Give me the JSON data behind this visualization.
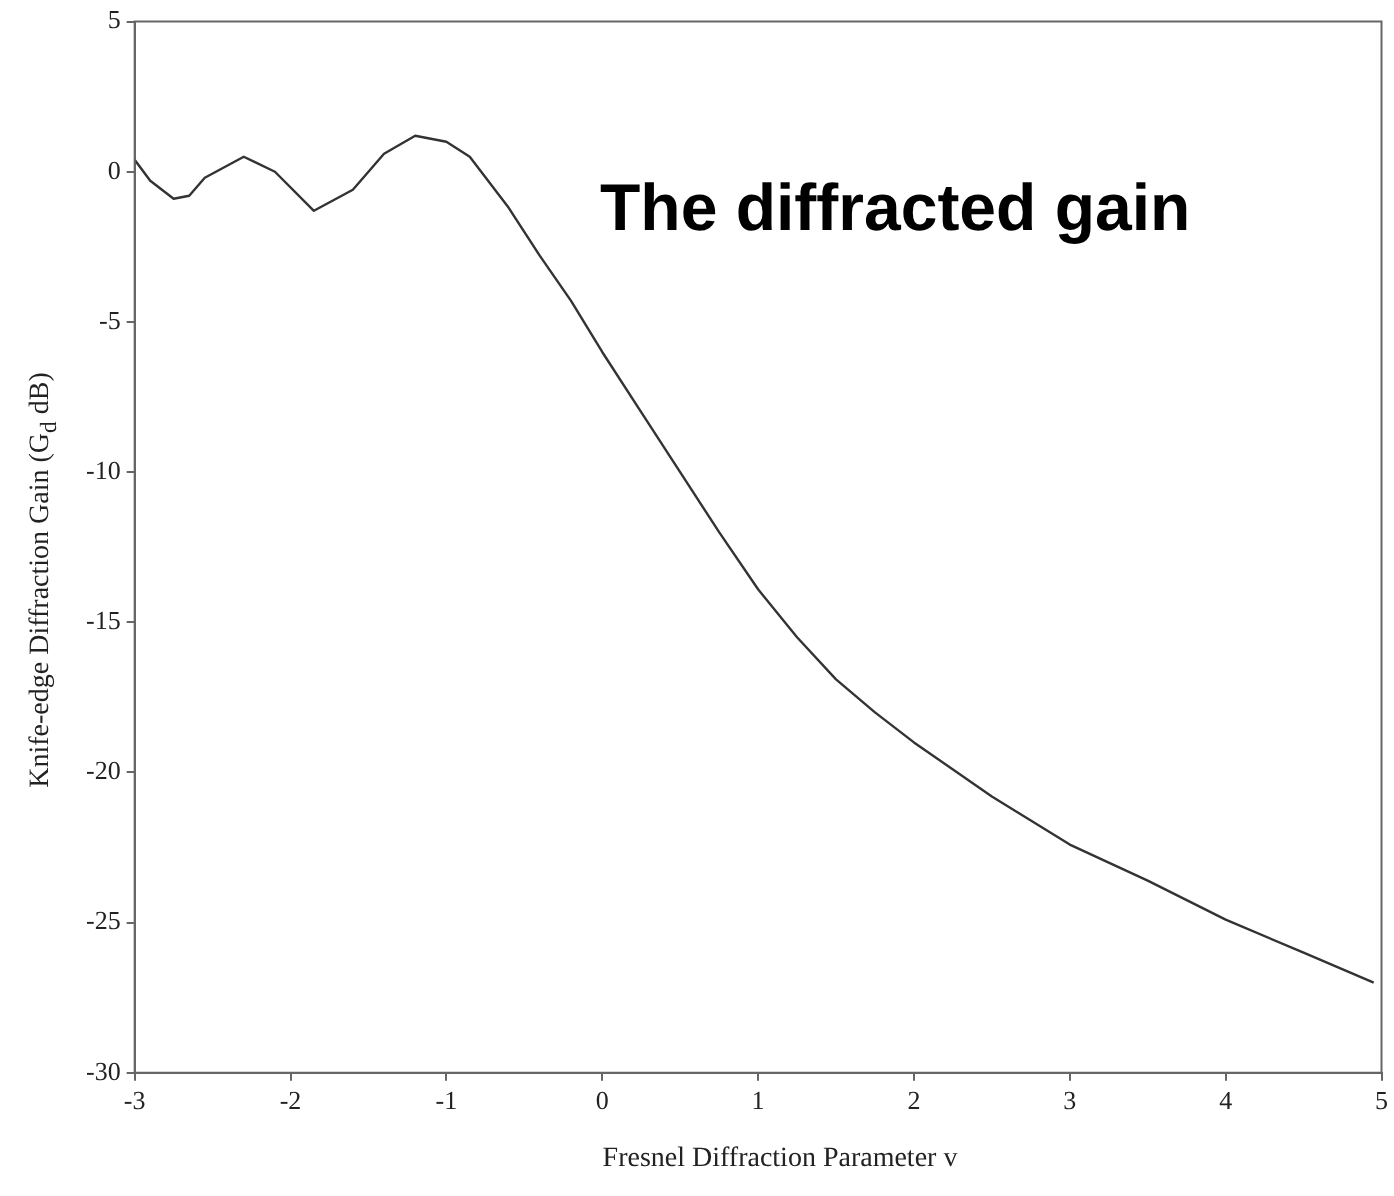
{
  "chart_data": {
    "type": "line",
    "xlabel": "Fresnel Diffraction Parameter v",
    "ylabel": "Knife-edge Diffraction Gain (G$_{d}$ dB)",
    "annotations": [
      "The diffracted gain"
    ],
    "x": [
      -3,
      -2.9,
      -2.75,
      -2.65,
      -2.55,
      -2.3,
      -2.1,
      -1.85,
      -1.6,
      -1.4,
      -1.2,
      -1,
      -0.85,
      -0.6,
      -0.4,
      -0.2,
      0,
      0.25,
      0.5,
      0.75,
      1,
      1.25,
      1.5,
      1.75,
      2,
      2.5,
      3,
      3.5,
      4,
      4.5,
      4.95
    ],
    "series": [
      {
        "color": "#333333",
        "values": [
          0.4,
          -0.3,
          -0.9,
          -0.8,
          -0.2,
          0.5,
          0,
          -1.3,
          -0.6,
          0.6,
          1.2,
          1,
          0.5,
          -1.2,
          -2.8,
          -4.3,
          -6,
          -8,
          -10,
          -12,
          -13.9,
          -15.5,
          -16.9,
          -18,
          -19,
          -20.8,
          -22.4,
          -23.6,
          -24.9,
          -26,
          -27
        ]
      }
    ],
    "xlim": [
      -3,
      5
    ],
    "xticks": [
      -3,
      -2,
      -1,
      0,
      1,
      2,
      3,
      4,
      5
    ],
    "ylim": [
      -30,
      5
    ],
    "yticks": [
      -30,
      -25,
      -20,
      -15,
      -10,
      -5,
      0,
      5
    ],
    "grid": false,
    "legend": false,
    "marker": "none",
    "line_style": "solid"
  }
}
